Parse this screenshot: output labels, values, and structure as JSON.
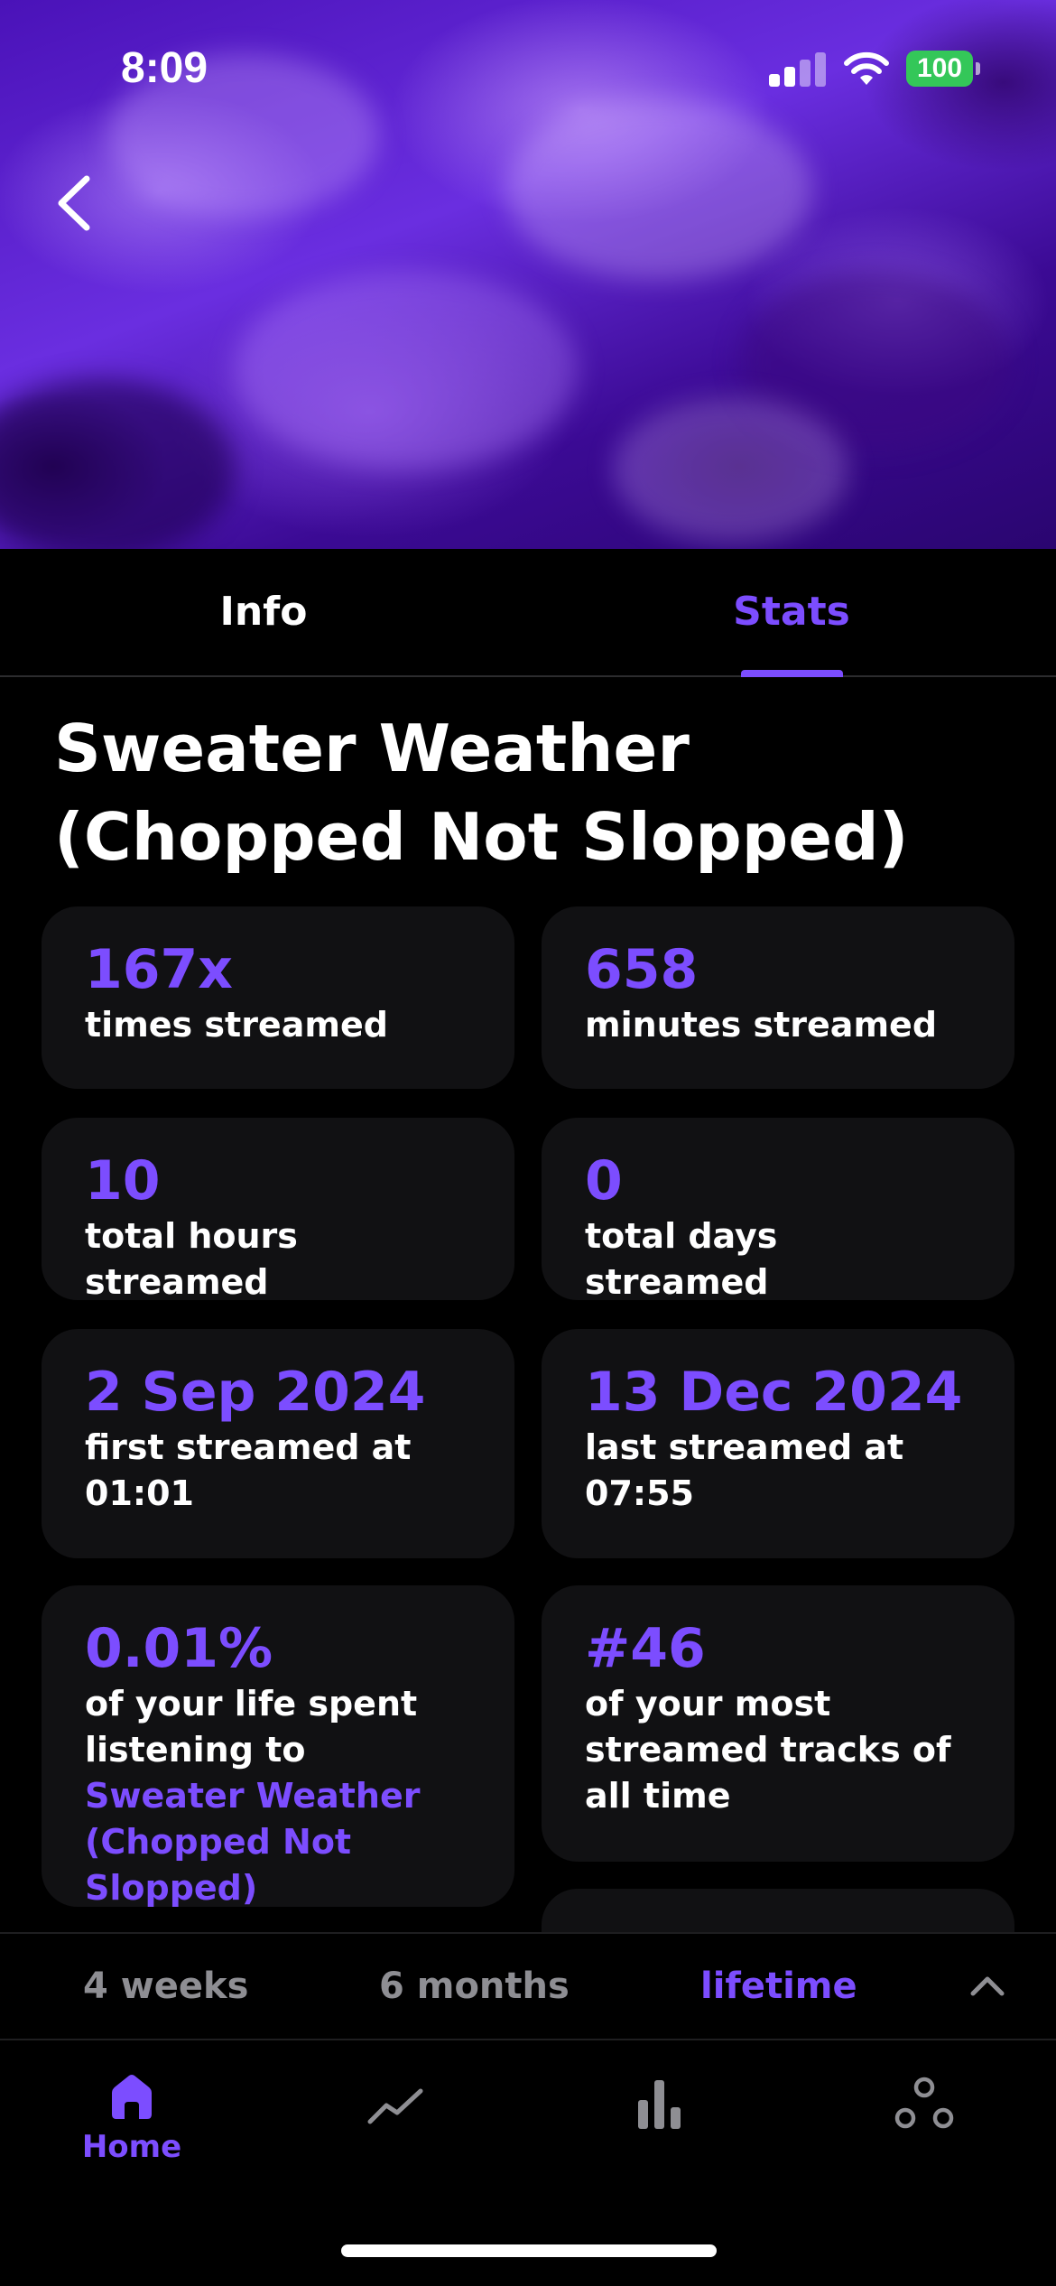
{
  "status_bar": {
    "time": "8:09",
    "battery": "100"
  },
  "tabs": [
    {
      "label": "Info",
      "active": false
    },
    {
      "label": "Stats",
      "active": true
    }
  ],
  "track": {
    "title": "Sweater Weather (Chopped Not Slopped)"
  },
  "stats": {
    "times_streamed": {
      "value": "167x",
      "label": "times streamed"
    },
    "minutes_streamed": {
      "value": "658",
      "label": "minutes streamed"
    },
    "total_hours": {
      "value": "10",
      "label": "total hours streamed"
    },
    "total_days": {
      "value": "0",
      "label": "total days streamed"
    },
    "first_streamed": {
      "value": "2 Sep 2024",
      "label": "first streamed at",
      "time": "01:01"
    },
    "last_streamed": {
      "value": "13 Dec 2024",
      "label": "last streamed at",
      "time": "07:55"
    },
    "life_spent": {
      "value": "0.01%",
      "label_prefix": "of your life spent listening to",
      "label_track": "Sweater Weather (Chopped Not Slopped)"
    },
    "rank": {
      "value": "#46",
      "label": "of your most streamed tracks of all time"
    }
  },
  "range": {
    "options": [
      "4 weeks",
      "6 months",
      "lifetime"
    ],
    "selected": "lifetime"
  },
  "bottom_nav": {
    "items": [
      {
        "icon": "home-icon",
        "label": "Home",
        "active": true
      },
      {
        "icon": "trend-icon",
        "label": "",
        "active": false
      },
      {
        "icon": "bar-chart-icon",
        "label": "",
        "active": false
      },
      {
        "icon": "social-icon",
        "label": "",
        "active": false
      }
    ]
  },
  "colors": {
    "accent": "#7c4dff",
    "card_bg": "#111113",
    "background": "#000000"
  }
}
